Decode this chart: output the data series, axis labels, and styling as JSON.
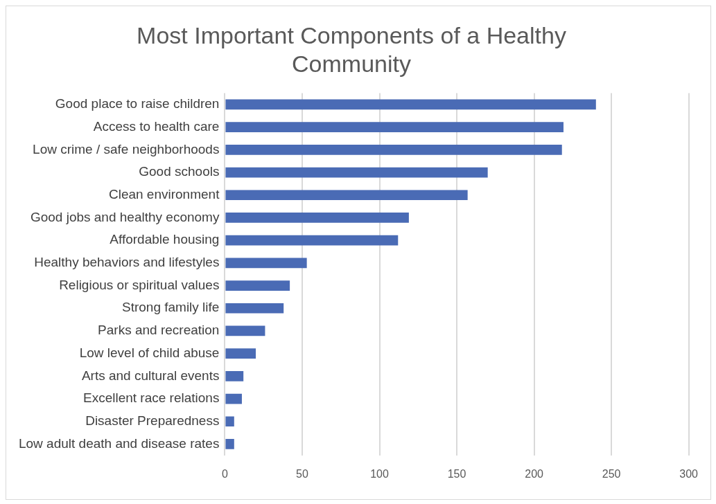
{
  "chart_data": {
    "type": "bar",
    "orientation": "horizontal",
    "title": "Most Important Components of a Healthy Community",
    "categories": [
      "Good place to raise children",
      "Access to health care",
      "Low crime / safe neighborhoods",
      "Good schools",
      "Clean environment",
      "Good jobs and healthy economy",
      "Affordable housing",
      "Healthy behaviors and lifestyles",
      "Religious or spiritual values",
      "Strong family life",
      "Parks and recreation",
      "Low level of child abuse",
      "Arts and cultural events",
      "Excellent race relations",
      "Disaster Preparedness",
      "Low adult death and disease rates"
    ],
    "values": [
      240,
      219,
      218,
      170,
      157,
      119,
      112,
      53,
      42,
      38,
      26,
      20,
      12,
      11,
      6,
      6
    ],
    "color": "#4a6bb5",
    "xlim": [
      0,
      300
    ],
    "xticks": [
      0,
      50,
      100,
      150,
      200,
      250,
      300
    ],
    "grid": "x",
    "legend": false
  }
}
